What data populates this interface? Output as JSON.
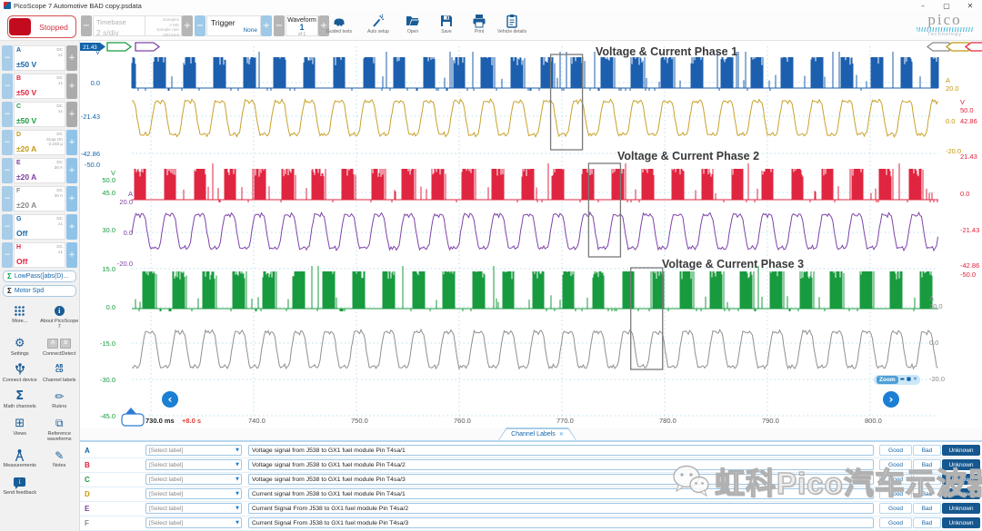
{
  "window": {
    "title": "PicoScope 7 Automotive BAD copy.psdata",
    "controls": {
      "minimize": "–",
      "maximize": "▢",
      "close": "✕"
    }
  },
  "glyphs": {
    "minus": "−",
    "plus": "+",
    "dropdown": "▼",
    "close": "✕",
    "nav_left": "‹",
    "nav_right": "›",
    "zoom_min": "▬",
    "zoom_max": "■",
    "zoom_close": "✕"
  },
  "toolbar": {
    "stopped_label": "Stopped",
    "timebase": {
      "label": "Timebase",
      "value": "2 s/div",
      "samples_label": "Samples",
      "samples_value": "4 MS",
      "rate_label": "Sample rate",
      "rate_value": "200 kS/s"
    },
    "trigger": {
      "label": "Trigger",
      "mode": "None"
    },
    "waveform": {
      "label": "Waveform",
      "value": "1",
      "of": "of 1"
    },
    "buttons": [
      {
        "label": "Guided tests",
        "icon": "car-icon"
      },
      {
        "label": "Auto setup",
        "icon": "magic-wand-icon"
      },
      {
        "label": "Open",
        "icon": "open-folder-icon"
      },
      {
        "label": "Save",
        "icon": "save-disk-icon"
      },
      {
        "label": "Print",
        "icon": "printer-icon"
      },
      {
        "label": "Vehicle details",
        "icon": "clipboard-icon"
      }
    ],
    "logo": {
      "brand": "pico",
      "sub": "Technology"
    }
  },
  "sidebar": {
    "channels": [
      {
        "id": "A",
        "range": "±50 V",
        "meta": [
          "DC",
          "x1"
        ],
        "color": "#1464a8",
        "plus_blue": false
      },
      {
        "id": "B",
        "range": "±50 V",
        "meta": [
          "DC",
          "x1"
        ],
        "color": "#e0203a",
        "plus_blue": false
      },
      {
        "id": "C",
        "range": "±50 V",
        "meta": [
          "DC",
          "x1"
        ],
        "color": "#189b3f",
        "plus_blue": false
      },
      {
        "id": "D",
        "range": "±20 A",
        "meta": [
          "DC",
          "Snap On",
          "-2.193 µ"
        ],
        "color": "#c09a10",
        "plus_blue": true
      },
      {
        "id": "E",
        "range": "±20 A",
        "meta": [
          "DC",
          "30 A"
        ],
        "color": "#7b3fa0",
        "plus_blue": true
      },
      {
        "id": "F",
        "range": "±20 A",
        "meta": [
          "DC",
          "30 A"
        ],
        "color": "#8a8a8a",
        "plus_blue": true
      },
      {
        "id": "G",
        "range": "Off",
        "meta": [
          "DC",
          "x1"
        ],
        "color": "#1464a8",
        "plus_blue": true
      },
      {
        "id": "H",
        "range": "Off",
        "meta": [
          "DC",
          "x1"
        ],
        "color": "#e0203a",
        "plus_blue": true
      }
    ],
    "math": [
      {
        "sigma": "Σ",
        "sigma_color": "#00a650",
        "label": "LowPass([abs(D)..."
      },
      {
        "sigma": "Σ",
        "sigma_color": "#222222",
        "label": "Motor Spd"
      }
    ],
    "tools": [
      {
        "label": "More...",
        "icon": "more-grid-icon"
      },
      {
        "label": "About PicoScope 7",
        "icon": "info-icon"
      },
      {
        "label": "Settings",
        "icon": "gear-icon"
      },
      {
        "label": "ConnectDetect",
        "icon": "connect-detect-icon"
      },
      {
        "label": "Connect device",
        "icon": "usb-icon"
      },
      {
        "label": "Channel labels",
        "icon": "channel-labels-icon"
      },
      {
        "label": "Math channels",
        "icon": "sigma-icon"
      },
      {
        "label": "Rulers",
        "icon": "ruler-icon"
      },
      {
        "label": "Views",
        "icon": "views-grid-icon"
      },
      {
        "label": "Reference waveforms",
        "icon": "reference-waveforms-icon"
      },
      {
        "label": "Measurements",
        "icon": "measurements-icon"
      },
      {
        "label": "Notes",
        "icon": "notes-icon"
      },
      {
        "label": "Send feedback",
        "icon": "feedback-icon"
      }
    ]
  },
  "chart_data": {
    "type": "line",
    "annotations": [
      "Voltage & Current Phase 1",
      "Voltage & Current Phase 2",
      "Voltage & Current Phase 3"
    ],
    "x_axis": {
      "unit": "ms",
      "range": [
        730,
        800
      ],
      "tick_step_ms": 10,
      "ticks": [
        "730.0 ms",
        "740.0",
        "750.0",
        "760.0",
        "770.0",
        "780.0",
        "790.0",
        "800.0"
      ],
      "offset_label": "+8.0 s"
    },
    "y_axes": [
      {
        "channel": "A",
        "unit": "V",
        "side": "left",
        "color": "#1464a8",
        "ticks": [
          "V",
          "0.0",
          "-21.43",
          "-42.86",
          "-50.0"
        ]
      },
      {
        "channel": "C",
        "unit": "V",
        "side": "left",
        "color": "#189b3f",
        "ticks": [
          "V",
          "50.0",
          "45.0",
          "30.0",
          "15.0",
          "0.0",
          "-15.0",
          "-30.0",
          "-45.0"
        ]
      },
      {
        "channel": "E",
        "unit": "A",
        "side": "left",
        "color": "#7b3fa0",
        "ticks": [
          "A",
          "20.0",
          "0.0",
          "-20.0"
        ]
      },
      {
        "channel": "D",
        "unit": "A",
        "side": "right",
        "color": "#c09a10",
        "ticks": [
          "A",
          "20.0",
          "0.0",
          "-20.0"
        ]
      },
      {
        "channel": "B",
        "unit": "V",
        "side": "right",
        "color": "#e0203a",
        "ticks": [
          "V",
          "50.0",
          "42.86",
          "21.43",
          "0.0",
          "-21.43",
          "-42.86",
          "-50.0"
        ]
      },
      {
        "channel": "F",
        "unit": "A",
        "side": "right",
        "color": "#8a8a8a",
        "ticks": [
          "A",
          "20.0",
          "0.0",
          "-20.0"
        ]
      }
    ],
    "series": [
      {
        "name": "Phase 1 voltage (Ch A)",
        "color": "#1c5fae",
        "shape": "pwm-burst",
        "cycles_visible": 27,
        "phase_deg": 0,
        "range": "±50 V"
      },
      {
        "name": "Phase 1 current (Ch D)",
        "color": "#c9a22b",
        "shape": "stepped-sine",
        "cycles_visible": 27,
        "phase_deg": 0,
        "range": "±20 A"
      },
      {
        "name": "Phase 2 voltage (Ch B)",
        "color": "#e02540",
        "shape": "pwm-burst",
        "cycles_visible": 27,
        "phase_deg": -120,
        "range": "±50 V"
      },
      {
        "name": "Phase 2 current (Ch E)",
        "color": "#7e44a8",
        "shape": "stepped-sine",
        "cycles_visible": 27,
        "phase_deg": -120,
        "range": "±20 A"
      },
      {
        "name": "Phase 3 voltage (Ch C)",
        "color": "#189b3f",
        "shape": "pwm-burst",
        "cycles_visible": 27,
        "phase_deg": -240,
        "range": "±50 V"
      },
      {
        "name": "Phase 3 current (Ch F)",
        "color": "#909090",
        "shape": "stepped-sine",
        "cycles_visible": 27,
        "phase_deg": -240,
        "range": "±20 A"
      }
    ],
    "zoom_regions_ms": [
      [
        768.9,
        772.0
      ],
      [
        772.6,
        775.7
      ],
      [
        776.7,
        779.8
      ]
    ],
    "channel_markers": {
      "left_value": "21.43",
      "left_colors": [
        "#1464a8",
        "#189b3f",
        "#7e44a8"
      ],
      "right_colors": [
        "#8a8a8a",
        "#c09a10",
        "#e02540"
      ]
    },
    "grid": true,
    "zoom_widget_label": "Zoom"
  },
  "bottom": {
    "tab_label": "Channel Labels",
    "dropdown_placeholder": "[Select label]",
    "rating_options": [
      "Good",
      "Bad",
      "Unknown"
    ],
    "rows": [
      {
        "ch": "A",
        "color": "#1464a8",
        "description": "Voltage signal from J538 to GX1 fuel module Pin T4sa/1",
        "selected": "Unknown"
      },
      {
        "ch": "B",
        "color": "#e0203a",
        "description": "Voltage signal from J538 to GX1 fuel module Pin T4sa/2",
        "selected": "Unknown"
      },
      {
        "ch": "C",
        "color": "#189b3f",
        "description": "Voltage signal from J538 to GX1 fuel module Pin T4sa/3",
        "selected": "Unknown"
      },
      {
        "ch": "D",
        "color": "#c09a10",
        "description": "Current signal from J538 to GX1 fuel module Pin T4sa/1",
        "selected": "Unknown"
      },
      {
        "ch": "E",
        "color": "#7b3fa0",
        "description": "Current Signal From J538 to GX1 fuel module Pin T4sa/2",
        "selected": "Unknown"
      },
      {
        "ch": "F",
        "color": "#8a8a8a",
        "description": "Current Signal From J538 to GX1 fuel module Pin T4sa/3",
        "selected": "Unknown"
      }
    ]
  },
  "watermark": {
    "text": "虹科Pico汽车示波器"
  }
}
